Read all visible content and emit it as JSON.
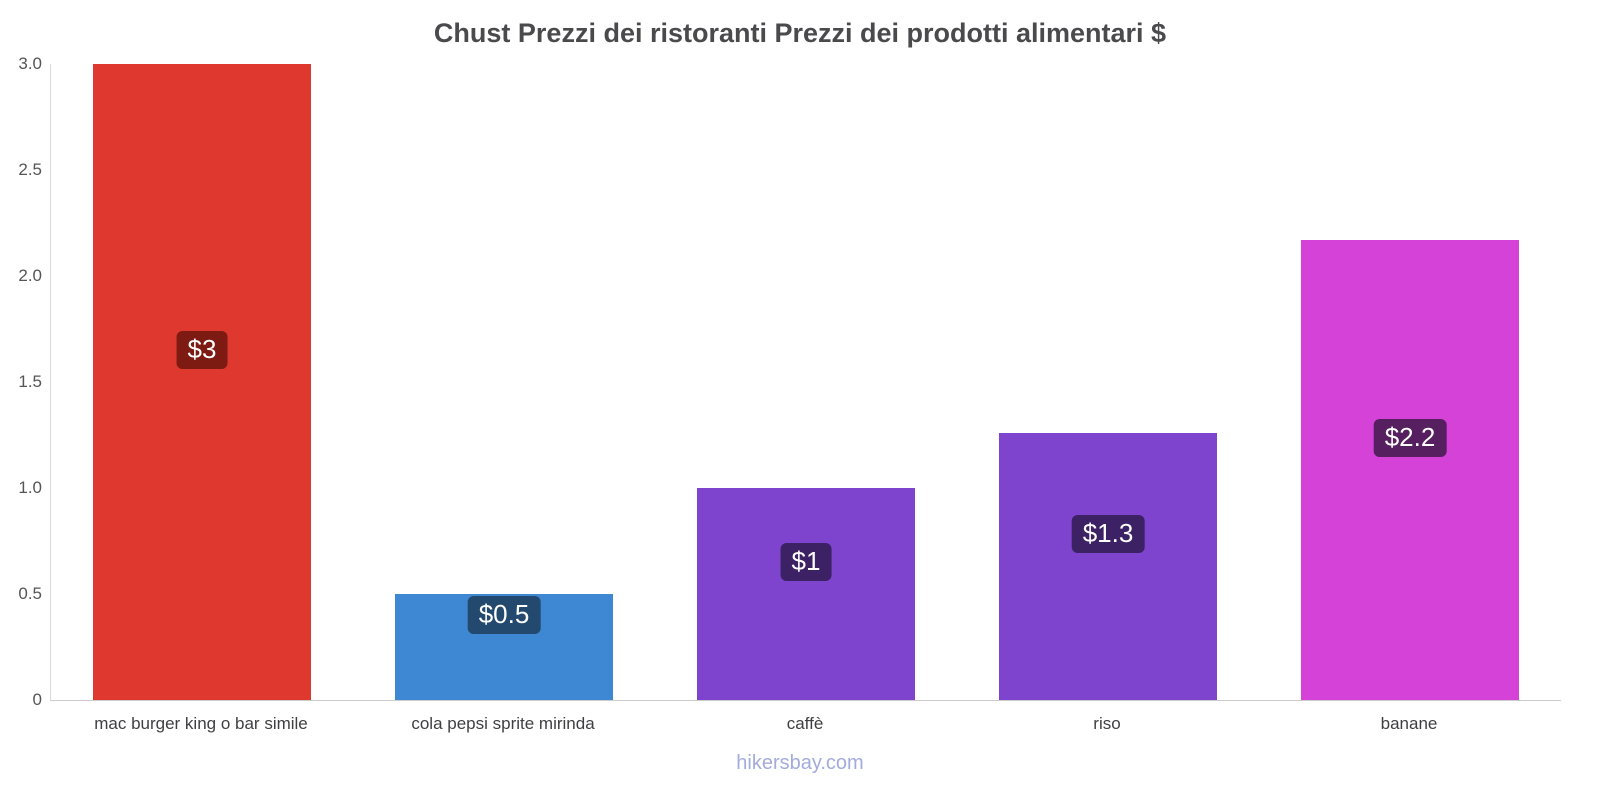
{
  "title": "Chust Prezzi dei ristoranti Prezzi dei prodotti alimentari $",
  "footer": "hikersbay.com",
  "chart_data": {
    "type": "bar",
    "title": "Chust Prezzi dei ristoranti Prezzi dei prodotti alimentari $",
    "xlabel": "",
    "ylabel": "",
    "categories": [
      "mac burger king o bar simile",
      "cola pepsi sprite mirinda",
      "caffè",
      "riso",
      "banane"
    ],
    "values": [
      3,
      0.5,
      1,
      1.26,
      2.17
    ],
    "value_labels": [
      "$3",
      "$0.5",
      "$1",
      "$1.3",
      "$2.2"
    ],
    "bar_colors": [
      "#df382f",
      "#3e87d3",
      "#7e44ce",
      "#7e44ce",
      "#d442d8"
    ],
    "label_bg_colors": [
      "#7d1a12",
      "#234a6e",
      "#3c2165",
      "#3c2165",
      "#551f60"
    ],
    "ylim": [
      0,
      3
    ],
    "yticks": [
      0,
      0.5,
      1.0,
      1.5,
      2.0,
      2.5,
      3.0
    ],
    "ytick_labels": [
      "0",
      "0.5",
      "1.0",
      "1.5",
      "2.0",
      "2.5",
      "3.0"
    ],
    "grid": false,
    "legend": false
  }
}
